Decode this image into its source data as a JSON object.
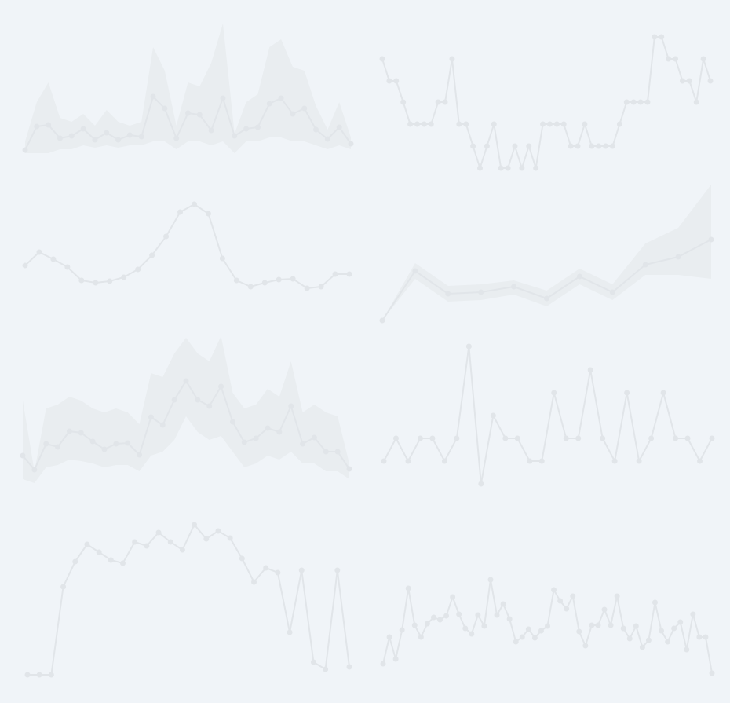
{
  "chart_data": [
    {
      "type": "line",
      "color": "#e1e5e9",
      "band_color": "#e9edf0",
      "ylim": [
        0,
        210
      ],
      "values": [
        9,
        39,
        41,
        24,
        27,
        36,
        22,
        31,
        22,
        28,
        26,
        77,
        62,
        24,
        56,
        54,
        34,
        75,
        27,
        36,
        38,
        68,
        75,
        55,
        62,
        35,
        23,
        38,
        17
      ],
      "upper": [
        20,
        70,
        95,
        50,
        45,
        55,
        40,
        60,
        45,
        40,
        45,
        140,
        110,
        40,
        95,
        90,
        120,
        170,
        30,
        70,
        80,
        140,
        150,
        115,
        110,
        65,
        35,
        70,
        25
      ],
      "lower": [
        5,
        5,
        5,
        10,
        10,
        15,
        12,
        15,
        12,
        15,
        15,
        20,
        20,
        10,
        20,
        20,
        15,
        20,
        5,
        20,
        20,
        25,
        25,
        20,
        20,
        15,
        10,
        15,
        10
      ]
    },
    {
      "type": "line",
      "color": "#e1e5e9",
      "ylim": [
        0,
        210
      ],
      "values": [
        145,
        117,
        117,
        90,
        62,
        62,
        62,
        62,
        90,
        90,
        145,
        62,
        62,
        34,
        6,
        34,
        62,
        6,
        6,
        34,
        6,
        34,
        6,
        62,
        62,
        62,
        62,
        34,
        34,
        62,
        34,
        34,
        34,
        34,
        62,
        90,
        90,
        90,
        90,
        173,
        173,
        145,
        145,
        117,
        117,
        90,
        145,
        117
      ]
    },
    {
      "type": "line",
      "color": "#e1e5e9",
      "ylim": [
        0,
        210
      ],
      "values": [
        62,
        79,
        70,
        60,
        43,
        40,
        42,
        47,
        57,
        75,
        99,
        130,
        140,
        128,
        71,
        43,
        35,
        40,
        44,
        45,
        33,
        35,
        51,
        51
      ]
    },
    {
      "type": "line",
      "color": "#e1e5e9",
      "band_color": "#e9edf0",
      "ylim": [
        0,
        210
      ],
      "values": [
        12,
        75,
        46,
        48,
        55,
        40,
        68,
        48,
        83,
        93,
        115
      ],
      "upper": [
        12,
        85,
        56,
        58,
        63,
        50,
        78,
        58,
        110,
        130,
        185
      ],
      "lower": [
        12,
        65,
        36,
        38,
        45,
        30,
        58,
        38,
        70,
        70,
        65
      ]
    },
    {
      "type": "line",
      "color": "#e1e5e9",
      "band_color": "#e9edf0",
      "ylim": [
        0,
        210
      ],
      "values": [
        40,
        22,
        55,
        51,
        71,
        69,
        58,
        48,
        55,
        56,
        41,
        89,
        79,
        111,
        135,
        111,
        103,
        128,
        83,
        57,
        62,
        75,
        70,
        103,
        55,
        63,
        45,
        45,
        23
      ],
      "upper": [
        110,
        20,
        100,
        105,
        115,
        110,
        100,
        95,
        100,
        95,
        80,
        145,
        140,
        170,
        190,
        170,
        160,
        192,
        120,
        100,
        105,
        125,
        115,
        160,
        95,
        105,
        95,
        90,
        30
      ],
      "lower": [
        10,
        5,
        25,
        28,
        35,
        33,
        30,
        25,
        28,
        28,
        20,
        40,
        45,
        60,
        90,
        70,
        60,
        65,
        45,
        25,
        30,
        40,
        35,
        45,
        30,
        30,
        20,
        20,
        10
      ]
    },
    {
      "type": "line",
      "color": "#e1e5e9",
      "ylim": [
        0,
        210
      ],
      "values": [
        43,
        72,
        43,
        72,
        72,
        43,
        72,
        189,
        14,
        101,
        72,
        72,
        43,
        43,
        130,
        72,
        72,
        159,
        72,
        43,
        130,
        43,
        72,
        130,
        72,
        72,
        43,
        72
      ]
    },
    {
      "type": "line",
      "color": "#e1e5e9",
      "ylim": [
        0,
        210
      ],
      "values": [
        11,
        11,
        11,
        123,
        155,
        177,
        167,
        157,
        153,
        180,
        175,
        192,
        180,
        170,
        202,
        184,
        194,
        185,
        159,
        129,
        147,
        141,
        65,
        144,
        27,
        18,
        144,
        21
      ]
    },
    {
      "type": "line",
      "color": "#e1e5e9",
      "ylim": [
        0,
        210
      ],
      "values": [
        25,
        59,
        31,
        68,
        121,
        74,
        59,
        76,
        84,
        81,
        86,
        110,
        88,
        70,
        63,
        87,
        73,
        132,
        87,
        101,
        82,
        53,
        59,
        69,
        58,
        67,
        73,
        119,
        105,
        95,
        111,
        66,
        48,
        74,
        74,
        94,
        74,
        111,
        70,
        57,
        73,
        46,
        55,
        103,
        67,
        53,
        70,
        78,
        43,
        88,
        59,
        59,
        13
      ]
    }
  ]
}
